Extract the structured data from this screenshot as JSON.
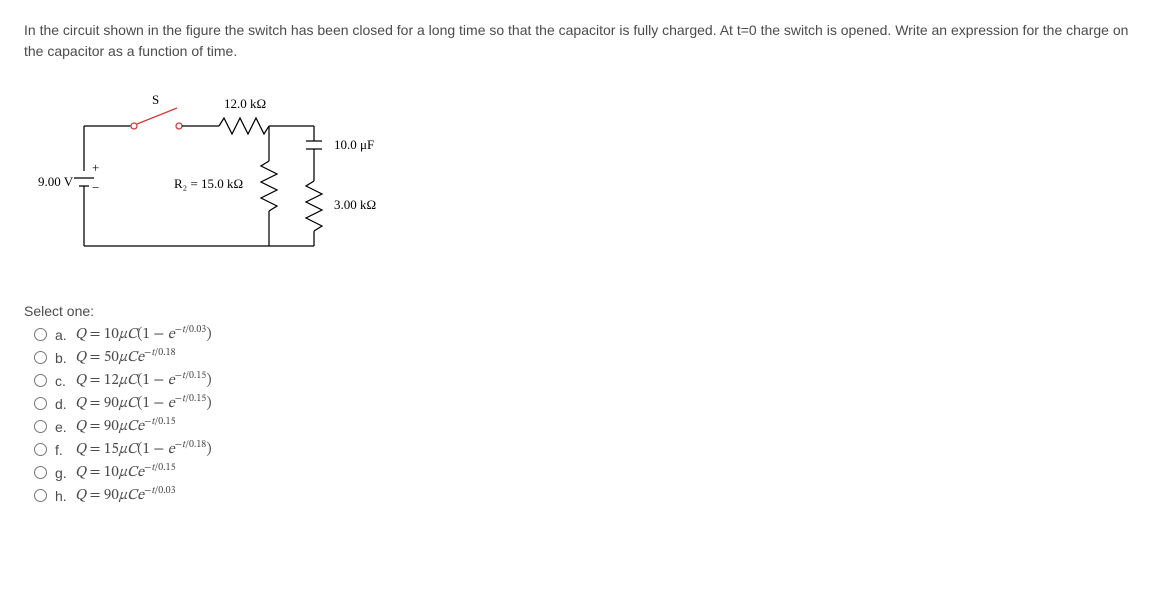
{
  "question": {
    "text": "In the circuit shown in the figure the switch has been closed for a long time so that the capacitor is fully charged. At t=0 the switch is opened. Write an expression for the charge on the capacitor as a function of time."
  },
  "circuit": {
    "voltage_label": "9.00 V",
    "switch_label": "S",
    "r1_label": "12.0 kΩ",
    "r2_label": "R₂ = 15.0 kΩ",
    "r3_label": "3.00 kΩ",
    "cap_label": "10.0 μF",
    "colors": {
      "wire": "#000000",
      "switch_wire": "#d13a3a",
      "background": "#ffffff"
    },
    "line_width": 1.25
  },
  "select_label": "Select one:",
  "options": [
    {
      "letter": "a.",
      "html": "<span class='it'>Q</span> = 10<span class='it'>μC</span>(1 − <span class='it'>e</span><sup>−<span class='it'>t</span>/0.03</sup>)"
    },
    {
      "letter": "b.",
      "html": "<span class='it'>Q</span> = 50<span class='it'>μCe</span><sup>−<span class='it'>t</span>/0.18</sup>"
    },
    {
      "letter": "c.",
      "html": "<span class='it'>Q</span> = 12<span class='it'>μC</span>(1 − <span class='it'>e</span><sup>−<span class='it'>t</span>/0.15</sup>)"
    },
    {
      "letter": "d.",
      "html": "<span class='it'>Q</span> = 90<span class='it'>μC</span>(1 − <span class='it'>e</span><sup>−<span class='it'>t</span>/0.15</sup>)"
    },
    {
      "letter": "e.",
      "html": "<span class='it'>Q</span> = 90<span class='it'>μCe</span><sup>−<span class='it'>t</span>/0.15</sup>"
    },
    {
      "letter": "f.",
      "html": "<span class='it'>Q</span> = 15<span class='it'>μC</span>(1 − <span class='it'>e</span><sup>−<span class='it'>t</span>/0.18</sup>)"
    },
    {
      "letter": "g.",
      "html": "<span class='it'>Q</span> = 10<span class='it'>μCe</span><sup>−<span class='it'>t</span>/0.15</sup>"
    },
    {
      "letter": "h.",
      "html": "<span class='it'>Q</span> = 90<span class='it'>μCe</span><sup>−<span class='it'>t</span>/0.03</sup>"
    }
  ]
}
